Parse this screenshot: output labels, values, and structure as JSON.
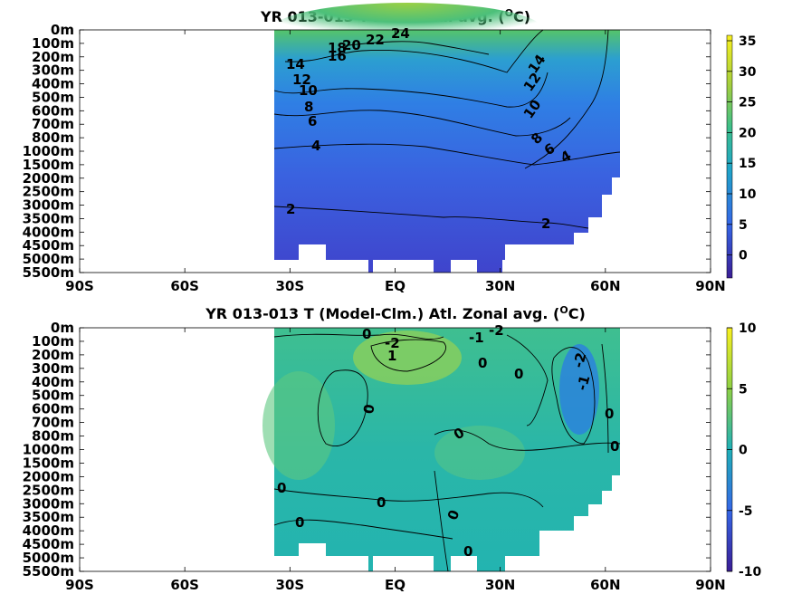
{
  "chart_data": [
    {
      "type": "heatmap",
      "title": "YR 013-013 T Atl. Zonal avg. (",
      "title_sup": "O",
      "title_unit": "C)",
      "xticks": [
        "90S",
        "60S",
        "30S",
        "EQ",
        "30N",
        "60N",
        "90N"
      ],
      "yticks": [
        "0m",
        "100m",
        "200m",
        "300m",
        "400m",
        "500m",
        "600m",
        "700m",
        "800m",
        "1000m",
        "1500m",
        "2000m",
        "2500m",
        "3000m",
        "3500m",
        "4000m",
        "4500m",
        "5000m",
        "5500m"
      ],
      "colorbar": {
        "ticks": [
          "35",
          "30",
          "25",
          "20",
          "15",
          "10",
          "5",
          "0"
        ],
        "range": [
          -3,
          36
        ]
      },
      "contour_labels": [
        "24",
        "22",
        "20",
        "18",
        "16",
        "14",
        "12",
        "10",
        "8",
        "6",
        "4",
        "2",
        "14",
        "12",
        "10",
        "8",
        "6",
        "4",
        "2"
      ]
    },
    {
      "type": "heatmap",
      "title": "YR 013-013 T (Model-Clm.) Atl. Zonal avg. (",
      "title_sup": "O",
      "title_unit": "C)",
      "xticks": [
        "90S",
        "60S",
        "30S",
        "EQ",
        "30N",
        "60N",
        "90N"
      ],
      "yticks": [
        "0m",
        "100m",
        "200m",
        "300m",
        "400m",
        "500m",
        "600m",
        "700m",
        "800m",
        "1000m",
        "1500m",
        "2000m",
        "2500m",
        "3000m",
        "3500m",
        "4000m",
        "4500m",
        "5000m",
        "5500m"
      ],
      "colorbar": {
        "ticks": [
          "10",
          "5",
          "0",
          "-5",
          "-10"
        ],
        "range": [
          -10,
          10
        ]
      },
      "contour_labels": [
        "0",
        "-2",
        "1",
        "-1",
        "-2",
        "0",
        "0",
        "-2",
        "-1",
        "0",
        "0",
        "0",
        "0",
        "0",
        "0",
        "0",
        "0",
        "0"
      ]
    }
  ],
  "colors": {
    "deep": "#3f38c8",
    "mid": "#2a78e0",
    "teal": "#2ab5b0",
    "green": "#7cd050",
    "yellow": "#f5e020"
  }
}
